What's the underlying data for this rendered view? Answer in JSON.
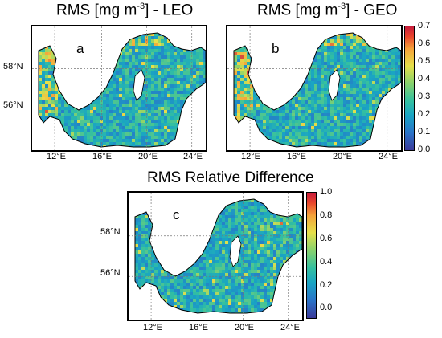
{
  "panels": {
    "a": {
      "title_main": "RMS [mg m",
      "title_exp": "-3",
      "title_tail": "] - LEO",
      "label": "a"
    },
    "b": {
      "title_main": "RMS [mg m",
      "title_exp": "-3",
      "title_tail": "] - GEO",
      "label": "b"
    },
    "c": {
      "title": "RMS Relative Difference",
      "label": "c"
    }
  },
  "axes": {
    "lon_ticks": [
      "12°E",
      "16°E",
      "20°E",
      "24°E"
    ],
    "lat_ticks": [
      "58°N",
      "56°N"
    ]
  },
  "colorbar_top": {
    "ticks": [
      "0.7",
      "0.6",
      "0.5",
      "0.4",
      "0.3",
      "0.2",
      "0.1",
      "0.0"
    ]
  },
  "colorbar_bottom": {
    "ticks": [
      "1.0",
      "0.8",
      "0.6",
      "0.4",
      "0.2",
      "0.0"
    ]
  },
  "colors": {
    "low": "#3b3a9a",
    "mid": "#34c0a0",
    "high": "#c81c3c",
    "land": "#ffffff",
    "coast": "#000000"
  }
}
